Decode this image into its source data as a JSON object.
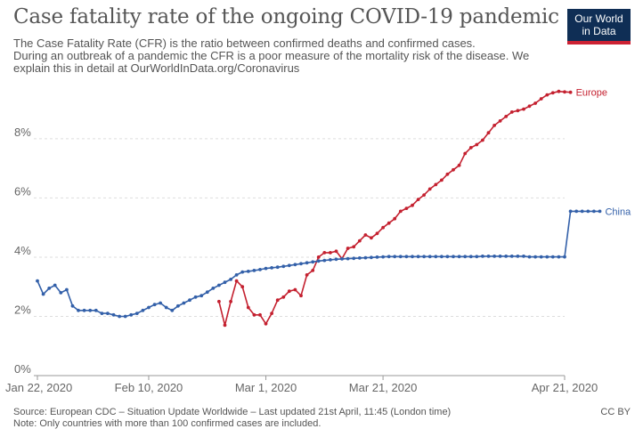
{
  "header": {
    "title": "Case fatality rate of the ongoing COVID-19 pandemic",
    "subtitle_line1": "The Case Fatality Rate (CFR) is the ratio between confirmed deaths and confirmed cases.",
    "subtitle_line2": "During an outbreak of a pandemic the CFR is a poor measure of the mortality risk of the disease. We",
    "subtitle_line3": "explain this in detail at OurWorldInData.org/Coronavirus"
  },
  "logo": {
    "line1": "Our World",
    "line2": "in Data",
    "bg_color": "#0f2e55",
    "accent_color": "#cc2133"
  },
  "footer": {
    "source": "Source: European CDC – Situation Update Worldwide – Last updated 21st April, 11:45 (London time)",
    "note": "Note: Only countries with more than 100 confirmed cases are included.",
    "license": "CC BY"
  },
  "chart_data": {
    "type": "line",
    "title": "Case fatality rate of the ongoing COVID-19 pandemic",
    "x_axis": {
      "type": "date",
      "start": "2020-01-22",
      "end": "2020-04-21",
      "ticks": [
        "Jan 22, 2020",
        "Feb 10, 2020",
        "Mar 1, 2020",
        "Mar 21, 2020",
        "Apr 21, 2020"
      ]
    },
    "y_axis": {
      "unit": "%",
      "range": [
        0,
        9.8
      ],
      "ticks": [
        0,
        2,
        4,
        6,
        8
      ],
      "tick_labels": [
        "0%",
        "2%",
        "4%",
        "6%",
        "8%"
      ]
    },
    "grid": "horizontal dashed",
    "legend": "inline labels at line ends",
    "series": [
      {
        "name": "Europe",
        "color": "#c4202f",
        "start_date": "2020-02-22",
        "values": [
          2.5,
          1.7,
          2.5,
          3.2,
          3.0,
          2.3,
          2.05,
          2.05,
          1.75,
          2.1,
          2.55,
          2.65,
          2.85,
          2.9,
          2.7,
          3.4,
          3.55,
          4.0,
          4.15,
          4.15,
          4.2,
          3.95,
          4.3,
          4.35,
          4.55,
          4.75,
          4.65,
          4.8,
          5.0,
          5.15,
          5.3,
          5.55,
          5.65,
          5.75,
          5.95,
          6.1,
          6.3,
          6.45,
          6.6,
          6.8,
          6.95,
          7.1,
          7.5,
          7.7,
          7.8,
          7.95,
          8.2,
          8.45,
          8.6,
          8.75,
          8.9,
          8.95,
          9.0,
          9.1,
          9.2,
          9.35,
          9.48,
          9.55,
          9.6,
          9.58,
          9.57
        ]
      },
      {
        "name": "China",
        "color": "#3360a9",
        "start_date": "2020-01-22",
        "values": [
          3.2,
          2.75,
          2.95,
          3.05,
          2.8,
          2.9,
          2.35,
          2.2,
          2.2,
          2.2,
          2.2,
          2.1,
          2.1,
          2.05,
          2.0,
          2.0,
          2.05,
          2.1,
          2.2,
          2.3,
          2.4,
          2.45,
          2.3,
          2.2,
          2.35,
          2.45,
          2.55,
          2.65,
          2.7,
          2.82,
          2.95,
          3.05,
          3.15,
          3.25,
          3.4,
          3.5,
          3.52,
          3.55,
          3.58,
          3.62,
          3.64,
          3.66,
          3.69,
          3.72,
          3.75,
          3.78,
          3.81,
          3.84,
          3.87,
          3.89,
          3.91,
          3.93,
          3.94,
          3.95,
          3.96,
          3.97,
          3.98,
          3.99,
          4.0,
          4.01,
          4.02,
          4.02,
          4.02,
          4.02,
          4.02,
          4.02,
          4.02,
          4.02,
          4.02,
          4.02,
          4.02,
          4.02,
          4.02,
          4.02,
          4.02,
          4.02,
          4.03,
          4.03,
          4.03,
          4.03,
          4.03,
          4.03,
          4.03,
          4.03,
          4.01,
          4.01,
          4.01,
          4.01,
          4.01,
          4.01,
          4.01,
          5.55,
          5.55,
          5.55,
          5.55,
          5.55,
          5.55
        ]
      }
    ]
  }
}
